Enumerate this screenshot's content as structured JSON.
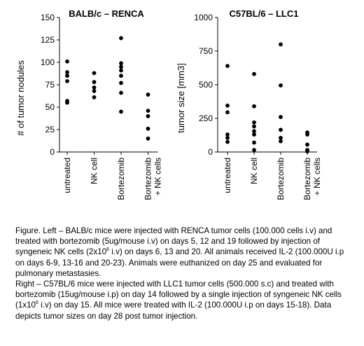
{
  "chart_data": [
    {
      "type": "scatter",
      "title": "BALB/c – RENCA",
      "ylabel": "# of tumor nodules",
      "ylim": [
        0,
        150
      ],
      "yticks": [
        0,
        25,
        50,
        75,
        100,
        125,
        150
      ],
      "categories": [
        "untreated",
        "NK cell",
        "Bortezomib",
        "Bortezomib\n+ NK cells"
      ],
      "series": [
        {
          "values": [
            [
              55,
              57,
              79,
              85,
              89,
              101
            ],
            [
              61,
              68,
              72,
              78,
              88
            ],
            [
              45,
              66,
              77,
              85,
              91,
              95,
              99,
              127
            ],
            [
              15,
              26,
              40,
              46,
              64
            ]
          ]
        }
      ],
      "point_color": "#000000"
    },
    {
      "type": "scatter",
      "title": "C57BL/6 – LLC1",
      "ylabel": "tumor size [mm3]",
      "ylim": [
        0,
        1000
      ],
      "yticks": [
        0,
        250,
        500,
        750,
        1000
      ],
      "categories": [
        "untreated",
        "NK cell",
        "Bortezomib",
        "Bortezomib\n+ NK cells"
      ],
      "series": [
        {
          "values": [
            [
              75,
              105,
              130,
              295,
              345,
              640
            ],
            [
              15,
              70,
              130,
              155,
              190,
              220,
              340,
              580
            ],
            [
              80,
              105,
              165,
              260,
              495,
              800
            ],
            [
              5,
              15,
              55,
              130,
              145
            ]
          ]
        }
      ],
      "point_color": "#000000"
    }
  ],
  "caption": {
    "p1_a": "Figure. Left – BALB/c mice were injected with RENCA tumor cells (100.000 cells i.v) and treated with bortezomib (5ug/mouse i.v) on days 5, 12 and 19 followed by injection of syngeneic NK cells (2x10",
    "p1_sup": "6",
    "p1_b": " i.v) on days 6, 13 and 20. All animals received IL-2 (100.000U i.p on days 6-9, 13-16 and 20-23). Animals were euthanized on day 25 and evaluated for pulmonary metastasies.",
    "p2_a": "Right – C57BL/6 mice were injected with LLC1 tumor cells (500.000 s.c) and treated with bortezomib (15ug/mouse i.p) on day 14 followed by a single injection of syngeneic NK cells (1x10",
    "p2_sup": "6",
    "p2_b": " i.v) on day 15. All mice were treated with IL-2 (100.000U i.p on days 15-18). Data depicts tumor sizes on day 28 post tumor injection."
  }
}
